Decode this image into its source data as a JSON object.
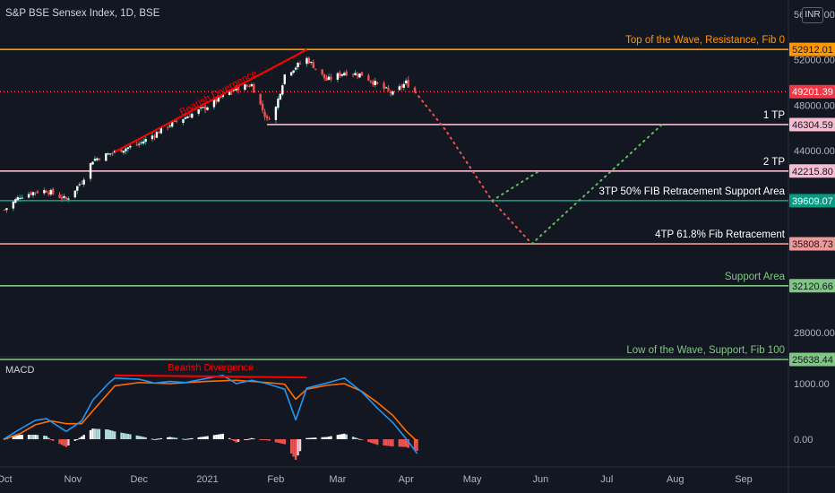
{
  "header": {
    "title": "S&P BSE Sensex Index, 1D, BSE",
    "currency": "INR"
  },
  "colors": {
    "background": "#131722",
    "up": "#ffffff",
    "down": "#ef5350",
    "wick": "#26a69a",
    "macd_line": "#2196f3",
    "signal_line": "#ff6d00",
    "divergence": "#ff0000",
    "forecast_red": "#ef5350",
    "forecast_green": "#66bb6a",
    "hist_up": "#ffffff",
    "hist_down": "#ef9a9a"
  },
  "chart_data": [
    {
      "type": "candlestick",
      "title": "S&P BSE Sensex Index, 1D, BSE",
      "x_axis_labels": [
        "Oct",
        "Nov",
        "Dec",
        "2021",
        "Feb",
        "Mar",
        "Apr",
        "May",
        "Jun",
        "Jul",
        "Aug",
        "Sep"
      ],
      "y_axis_ticks": [
        56000,
        52000,
        48000,
        44000,
        28000
      ],
      "y_axis_tick_labels": [
        "56000.00",
        "52000.00",
        "48000.00",
        "44000.00",
        "28000.00"
      ],
      "ylim": [
        25600,
        57000
      ],
      "last_price": 49201.39,
      "price_path": [
        [
          "2020-10-01",
          38800
        ],
        [
          "2020-10-08",
          40000
        ],
        [
          "2020-10-15",
          40400
        ],
        [
          "2020-10-20",
          40500
        ],
        [
          "2020-10-29",
          39700
        ],
        [
          "2020-11-05",
          41300
        ],
        [
          "2020-11-10",
          43200
        ],
        [
          "2020-11-20",
          43900
        ],
        [
          "2020-12-01",
          44600
        ],
        [
          "2020-12-15",
          46300
        ],
        [
          "2020-12-31",
          47800
        ],
        [
          "2021-01-14",
          49500
        ],
        [
          "2021-01-21",
          49800
        ],
        [
          "2021-01-28",
          46700
        ],
        [
          "2021-02-01",
          47800
        ],
        [
          "2021-02-05",
          50700
        ],
        [
          "2021-02-15",
          52100
        ],
        [
          "2021-02-24",
          50200
        ],
        [
          "2021-03-04",
          50900
        ],
        [
          "2021-03-12",
          50700
        ],
        [
          "2021-03-19",
          49800
        ],
        [
          "2021-03-26",
          49000
        ],
        [
          "2021-04-01",
          50000
        ],
        [
          "2021-04-05",
          49200
        ]
      ],
      "levels": [
        {
          "label": "Top of the Wave, Resistance, Fib 0",
          "value": 52912.01,
          "value_label": "52912.01",
          "color": "#ff9800"
        },
        {
          "label": "",
          "value": 49201.39,
          "value_label": "49201.39",
          "color": "#f23645"
        },
        {
          "label": "1 TP",
          "value": 46304.59,
          "value_label": "46304.59",
          "color": "#f8bbd0"
        },
        {
          "label": "2 TP",
          "value": 42215.8,
          "value_label": "42215.80",
          "color": "#f8bbd0"
        },
        {
          "label": "3TP 50% FIB Retracement Support Area",
          "value": 39609.07,
          "value_label": "39609.07",
          "color": "#089981"
        },
        {
          "label": "4TP  61.8% Fib Retracement",
          "value": 35808.73,
          "value_label": "35808.73",
          "color": "#ef9a9a"
        },
        {
          "label": "Support Area",
          "value": 32120.66,
          "value_label": "32120.66",
          "color": "#81c784"
        },
        {
          "label": "Low of the Wave, Support, Fib 100",
          "value": 25638.44,
          "value_label": "25638.44",
          "color": "#81c784"
        }
      ],
      "annotations": [
        {
          "text": "Bearish Divergence",
          "from": [
            "2020-11-20",
            43900
          ],
          "to": [
            "2021-02-15",
            52900
          ]
        }
      ],
      "projections": [
        {
          "color": "red",
          "points": [
            [
              "2021-04-05",
              49200
            ],
            [
              "2021-04-19",
              45800
            ],
            [
              "2021-05-10",
              39600
            ],
            [
              "2021-05-28",
              35808
            ]
          ]
        },
        {
          "color": "green",
          "points": [
            [
              "2021-05-10",
              39600
            ],
            [
              "2021-06-01",
              42300
            ]
          ]
        },
        {
          "color": "green",
          "points": [
            [
              "2021-05-28",
              35808
            ],
            [
              "2021-07-26",
              46300
            ]
          ]
        }
      ]
    },
    {
      "type": "macd",
      "title": "MACD",
      "y_axis_ticks": [
        1000,
        0
      ],
      "y_axis_tick_labels": [
        "1000.00",
        "0.00"
      ],
      "ylim": [
        -600,
        1500
      ],
      "macd": [
        [
          "2020-10-01",
          10
        ],
        [
          "2020-10-08",
          180
        ],
        [
          "2020-10-15",
          340
        ],
        [
          "2020-10-20",
          370
        ],
        [
          "2020-10-29",
          140
        ],
        [
          "2020-11-05",
          330
        ],
        [
          "2020-11-10",
          700
        ],
        [
          "2020-11-17",
          1000
        ],
        [
          "2020-11-20",
          1100
        ],
        [
          "2020-12-01",
          1080
        ],
        [
          "2020-12-08",
          1010
        ],
        [
          "2020-12-15",
          1040
        ],
        [
          "2020-12-22",
          1020
        ],
        [
          "2020-12-31",
          1090
        ],
        [
          "2021-01-08",
          1150
        ],
        [
          "2021-01-14",
          1000
        ],
        [
          "2021-01-21",
          1060
        ],
        [
          "2021-01-28",
          1000
        ],
        [
          "2021-02-01",
          950
        ],
        [
          "2021-02-05",
          900
        ],
        [
          "2021-02-10",
          350
        ],
        [
          "2021-02-15",
          920
        ],
        [
          "2021-02-24",
          1010
        ],
        [
          "2021-03-04",
          1100
        ],
        [
          "2021-03-12",
          850
        ],
        [
          "2021-03-19",
          560
        ],
        [
          "2021-03-26",
          300
        ],
        [
          "2021-04-01",
          10
        ],
        [
          "2021-04-05",
          -200
        ],
        [
          "2021-04-06",
          -260
        ]
      ],
      "signal": [
        [
          "2020-10-01",
          0
        ],
        [
          "2020-10-08",
          100
        ],
        [
          "2020-10-15",
          260
        ],
        [
          "2020-10-22",
          330
        ],
        [
          "2020-10-29",
          280
        ],
        [
          "2020-11-05",
          280
        ],
        [
          "2020-11-12",
          600
        ],
        [
          "2020-11-20",
          960
        ],
        [
          "2020-12-01",
          1020
        ],
        [
          "2020-12-15",
          1000
        ],
        [
          "2020-12-31",
          1040
        ],
        [
          "2021-01-14",
          1060
        ],
        [
          "2021-01-28",
          1020
        ],
        [
          "2021-02-05",
          990
        ],
        [
          "2021-02-10",
          720
        ],
        [
          "2021-02-15",
          900
        ],
        [
          "2021-02-24",
          970
        ],
        [
          "2021-03-04",
          1000
        ],
        [
          "2021-03-12",
          860
        ],
        [
          "2021-03-19",
          660
        ],
        [
          "2021-03-26",
          430
        ],
        [
          "2021-04-01",
          150
        ],
        [
          "2021-04-05",
          0
        ],
        [
          "2021-04-06",
          -50
        ]
      ],
      "annotations": [
        {
          "text": "Bearish Divergence",
          "from": [
            "2020-11-20",
            1150
          ],
          "to": [
            "2021-02-15",
            1110
          ]
        }
      ]
    }
  ]
}
